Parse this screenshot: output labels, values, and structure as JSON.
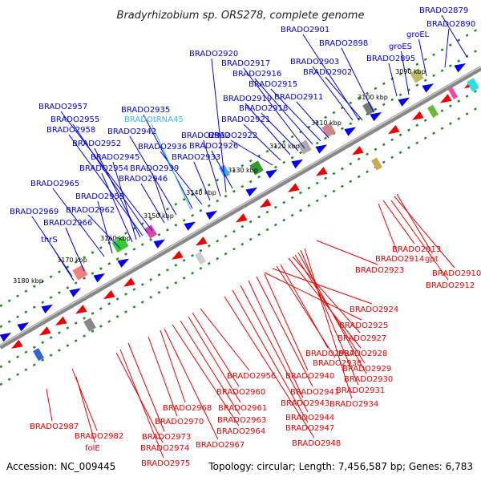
{
  "title": "Bradyrhizobium sp. ORS278, complete genome",
  "footer": {
    "accession": "Accession: NC_009445",
    "summary": "Topology: circular; Length: 7,456,587 bp; Genes: 6,783"
  },
  "colors": {
    "forward_strand": "#0000ee",
    "reverse_strand": "#ee0000",
    "rna_label": "#33bbee",
    "backbone": "#888888",
    "tick": "#228822"
  },
  "kbp_ticks": [
    "3090 kbp",
    "3100 kbp",
    "3110 kbp",
    "3120 kbp",
    "3130 kbp",
    "3140 kbp",
    "3150 kbp",
    "3160 kbp",
    "3170 kbp",
    "3180 kbp"
  ],
  "upper_labels": [
    "BRADO2879",
    "BRADO2890",
    "groEL",
    "groES",
    "BRADO2895",
    "BRADO2898",
    "BRADO2901",
    "BRADO2903",
    "BRADO2902",
    "BRADO2911",
    "BRADO2915",
    "BRADO2916",
    "BRADO2917",
    "BRADO2918",
    "BRADO2919",
    "BRADO2920",
    "BRADO2921",
    "BRADO2922",
    "BRADO2926",
    "BRADO2932",
    "BRADO2933",
    "BRADO2936",
    "BRADO2935",
    "BRADOtRNA45",
    "BRADO2942",
    "BRADO2957",
    "BRADO2955",
    "BRADO2958",
    "BRADO2952",
    "BRADO2945",
    "BRADO2954",
    "BRADO2939",
    "BRADO2946",
    "BRADO2965",
    "BRADO2959",
    "BRADO2962",
    "BRADO2969",
    "BRADO2966",
    "thrS"
  ],
  "lower_labels": [
    "BRADO2913",
    "BRADO2914",
    "gpt",
    "BRADO2910",
    "BRADO2912",
    "BRADO2923",
    "BRADO2924",
    "BRADO2925",
    "BRADO2927",
    "BRADO2928",
    "BRADO2937",
    "BRADO2938",
    "BRADO2929",
    "BRADO2930",
    "BRADO2940",
    "BRADO2956",
    "BRADO2931",
    "BRADO2941",
    "BRADO2943",
    "BRADO2934",
    "BRADO2960",
    "BRADO2961",
    "BRADO2968",
    "BRADO2963",
    "BRADO2970",
    "BRADO2944",
    "BRADO2947",
    "BRADO2964",
    "BRADO2973",
    "BRADO2967",
    "BRADO2948",
    "BRADO2987",
    "BRADO2982",
    "folE",
    "BRADO2974",
    "BRADO2975"
  ]
}
